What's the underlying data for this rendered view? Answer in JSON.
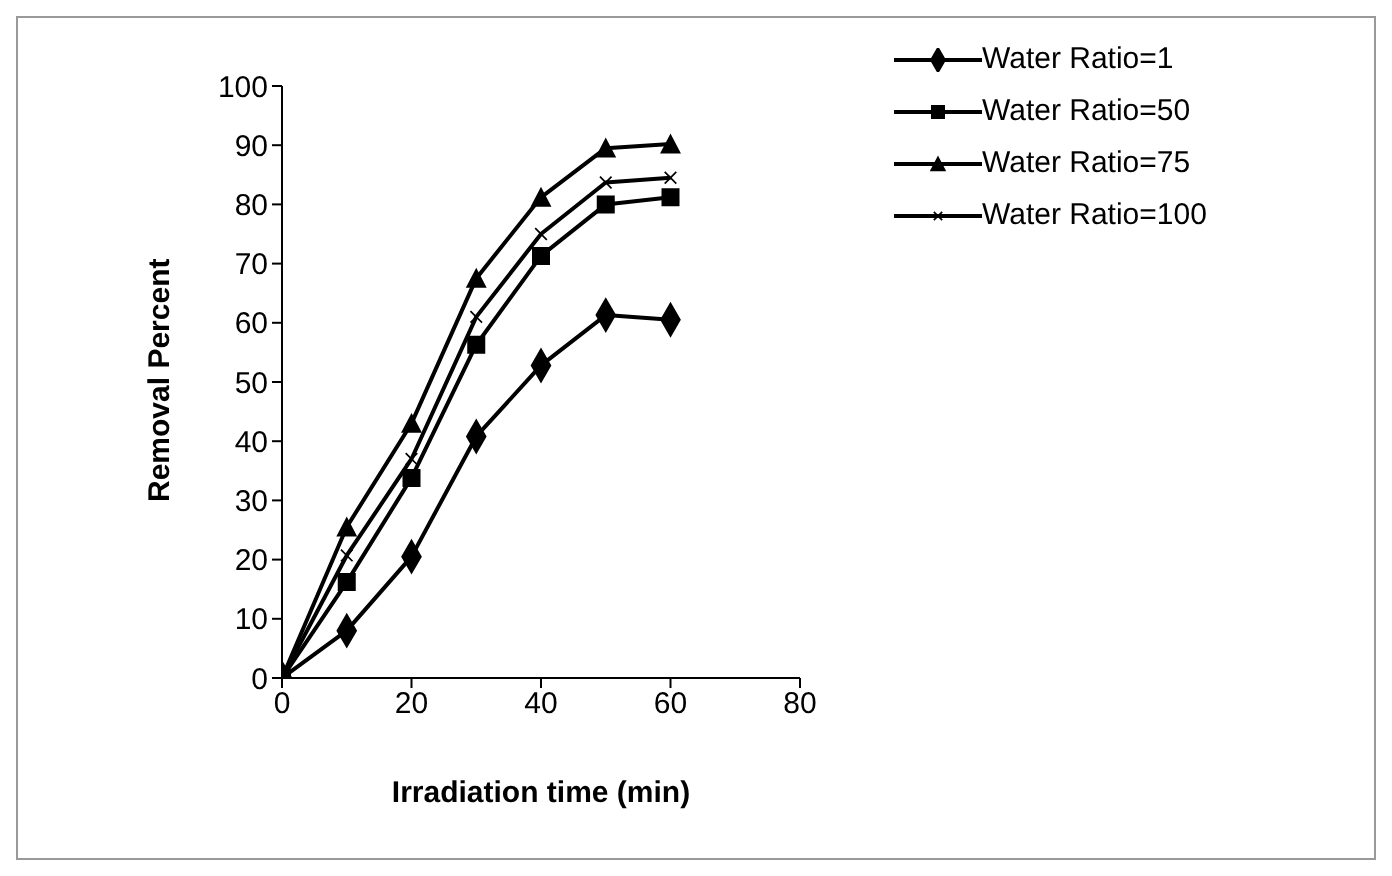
{
  "chart_data": {
    "type": "line",
    "xlabel": "Irradiation time (min)",
    "ylabel": "Removal Percent",
    "x": [
      0,
      10,
      20,
      30,
      40,
      50,
      60
    ],
    "series": [
      {
        "name": "Water Ratio=1",
        "color": "#000000",
        "marker": "diamond",
        "values": [
          0,
          8,
          20.5,
          40.8,
          52.8,
          61.3,
          60.5
        ]
      },
      {
        "name": "Water Ratio=50",
        "color": "#000000",
        "marker": "square",
        "values": [
          0,
          16.2,
          33.8,
          56.3,
          71.3,
          80,
          81.2
        ]
      },
      {
        "name": "Water Ratio=75",
        "color": "#000000",
        "marker": "triangle",
        "values": [
          0,
          25.5,
          43,
          67.5,
          81.2,
          89.5,
          90.2
        ]
      },
      {
        "name": "Water Ratio=100",
        "color": "#000000",
        "marker": "cross",
        "values": [
          0,
          20.7,
          37,
          61,
          75,
          83.7,
          84.5
        ]
      }
    ],
    "xlim": [
      0,
      80
    ],
    "xticks": [
      0,
      20,
      40,
      60,
      80
    ],
    "ylim": [
      0,
      100
    ],
    "yticks": [
      0,
      10,
      20,
      30,
      40,
      50,
      60,
      70,
      80,
      90,
      100
    ],
    "grid": false,
    "legend": "top right",
    "line_style": "solid"
  }
}
